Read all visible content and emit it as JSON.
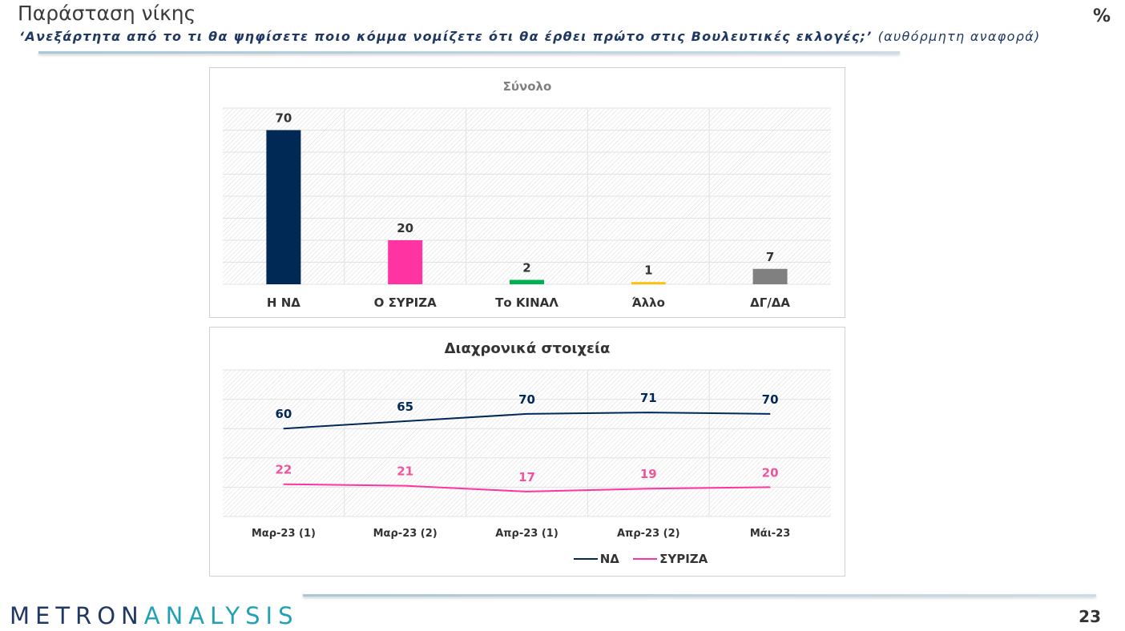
{
  "header": {
    "title": "Παράσταση νίκης",
    "subtitle": "‘Ανεξάρτητα από το τι θα ψηφίσετε ποιο κόμμα νομίζετε ότι θα έρθει πρώτο στις Βουλευτικές εκλογές;’",
    "subtitle_suffix": "(αυθόρμητη αναφορά)",
    "unit": "%"
  },
  "footer": {
    "logo_primary": "METRON",
    "logo_accent": "ANALYSIS",
    "page_number": "23"
  },
  "chart_data": [
    {
      "type": "bar",
      "title": "Σύνολο",
      "categories": [
        "Η ΝΔ",
        "Ο ΣΥΡΙΖΑ",
        "Το ΚΙΝΑΛ",
        "Άλλο",
        "ΔΓ/ΔΑ"
      ],
      "values": [
        70,
        20,
        2,
        1,
        7
      ],
      "colors": [
        "#002a55",
        "#ff33a1",
        "#00b050",
        "#ffc000",
        "#808080"
      ],
      "ylim": [
        0,
        80
      ],
      "grid": true
    },
    {
      "type": "line",
      "title": "Διαχρονικά στοιχεία",
      "categories": [
        "Μαρ-23 (1)",
        "Μαρ-23 (2)",
        "Απρ-23 (1)",
        "Απρ-23 (2)",
        "Μάι-23"
      ],
      "series": [
        {
          "name": "ΝΔ",
          "values": [
            60,
            65,
            70,
            71,
            70
          ],
          "color": "#002a55"
        },
        {
          "name": "ΣΥΡΙΖΑ",
          "values": [
            22,
            21,
            17,
            19,
            20
          ],
          "color": "#ff33a1"
        }
      ],
      "ylim": [
        0,
        100
      ],
      "grid": true,
      "legend": "bottom"
    }
  ]
}
